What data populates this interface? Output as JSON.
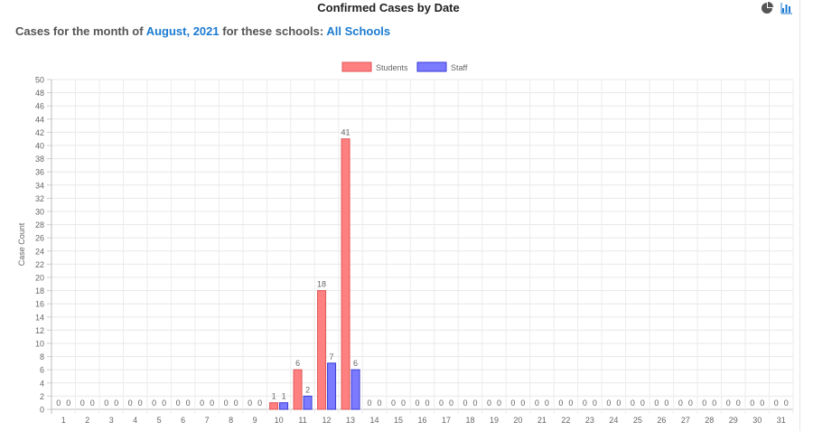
{
  "header": {
    "title": "Confirmed Cases by Date",
    "icons": [
      "pie-chart-icon",
      "bar-chart-icon"
    ]
  },
  "subtitle": {
    "prefix": "Cases for the month of ",
    "month": "August, 2021",
    "middle": " for these schools: ",
    "schools": "All Schools"
  },
  "colors": {
    "students_fill": "#ff8080",
    "students_stroke": "#e05656",
    "staff_fill": "#7b7bff",
    "staff_stroke": "#3a3ad6",
    "link": "#1c7bd0"
  },
  "chart_data": {
    "type": "bar",
    "ylabel": "Case Count",
    "ylim": [
      0,
      50
    ],
    "ytick_step": 2,
    "grid": true,
    "legend_position": "top-center",
    "categories": [
      "1",
      "2",
      "3",
      "4",
      "5",
      "6",
      "7",
      "8",
      "9",
      "10",
      "11",
      "12",
      "13",
      "14",
      "15",
      "16",
      "17",
      "18",
      "19",
      "20",
      "21",
      "22",
      "23",
      "24",
      "25",
      "26",
      "27",
      "28",
      "29",
      "30",
      "31"
    ],
    "series": [
      {
        "name": "Students",
        "values": [
          0,
          0,
          0,
          0,
          0,
          0,
          0,
          0,
          0,
          1,
          6,
          18,
          41,
          0,
          0,
          0,
          0,
          0,
          0,
          0,
          0,
          0,
          0,
          0,
          0,
          0,
          0,
          0,
          0,
          0,
          0
        ]
      },
      {
        "name": "Staff",
        "values": [
          0,
          0,
          0,
          0,
          0,
          0,
          0,
          0,
          0,
          1,
          2,
          7,
          6,
          0,
          0,
          0,
          0,
          0,
          0,
          0,
          0,
          0,
          0,
          0,
          0,
          0,
          0,
          0,
          0,
          0,
          0
        ]
      }
    ]
  }
}
